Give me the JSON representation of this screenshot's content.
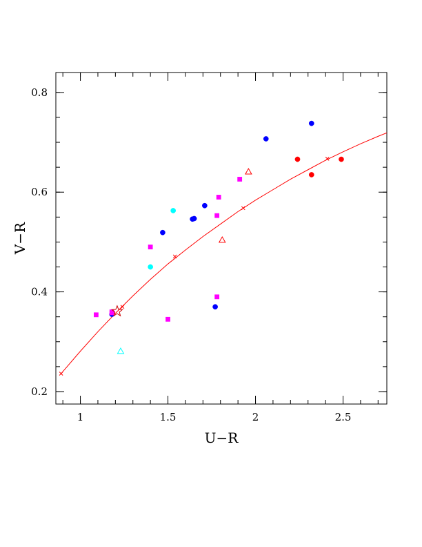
{
  "chart_data": {
    "type": "scatter",
    "xlabel": "U−R",
    "ylabel": "V−R",
    "xlim": [
      0.86,
      2.75
    ],
    "ylim": [
      0.175,
      0.84
    ],
    "x_ticks": [
      {
        "value": 1,
        "label": "1"
      },
      {
        "value": 1.5,
        "label": "1.5"
      },
      {
        "value": 2,
        "label": "2"
      },
      {
        "value": 2.5,
        "label": "2.5"
      }
    ],
    "y_ticks": [
      {
        "value": 0.2,
        "label": "0.2"
      },
      {
        "value": 0.4,
        "label": "0.4"
      },
      {
        "value": 0.6,
        "label": "0.6"
      },
      {
        "value": 0.8,
        "label": "0.8"
      }
    ],
    "x_minor_step": 0.1,
    "y_minor_step": 0.05,
    "grid": false,
    "colors": {
      "blue": "#0000ff",
      "red": "#ff0000",
      "magenta": "#ff00ff",
      "cyan": "#00ffff",
      "curve": "#ff0000",
      "star": "#cc0000"
    },
    "series": [
      {
        "marker": "circle",
        "color": "blue",
        "filled": true,
        "points": [
          [
            1.47,
            0.519
          ],
          [
            1.64,
            0.546
          ],
          [
            1.65,
            0.547
          ],
          [
            1.71,
            0.573
          ],
          [
            1.77,
            0.37
          ],
          [
            2.06,
            0.707
          ],
          [
            2.32,
            0.738
          ],
          [
            1.18,
            0.355
          ]
        ]
      },
      {
        "marker": "circle",
        "color": "red",
        "filled": true,
        "points": [
          [
            2.24,
            0.666
          ],
          [
            2.32,
            0.635
          ],
          [
            2.49,
            0.666
          ]
        ]
      },
      {
        "marker": "circle",
        "color": "cyan",
        "filled": true,
        "points": [
          [
            1.4,
            0.45
          ],
          [
            1.53,
            0.563
          ]
        ]
      },
      {
        "marker": "square",
        "color": "magenta",
        "filled": true,
        "points": [
          [
            1.09,
            0.354
          ],
          [
            1.18,
            0.358
          ],
          [
            1.18,
            0.36
          ],
          [
            1.4,
            0.49
          ],
          [
            1.5,
            0.345
          ],
          [
            1.78,
            0.39
          ],
          [
            1.78,
            0.553
          ],
          [
            1.79,
            0.59
          ],
          [
            1.91,
            0.626
          ]
        ]
      },
      {
        "marker": "triangle",
        "color": "red",
        "filled": false,
        "points": [
          [
            1.81,
            0.504
          ],
          [
            1.96,
            0.641
          ]
        ]
      },
      {
        "marker": "triangle",
        "color": "cyan",
        "filled": false,
        "points": [
          [
            1.23,
            0.281
          ]
        ]
      },
      {
        "marker": "star",
        "color": "star",
        "filled": false,
        "points": [
          [
            1.21,
            0.361
          ]
        ]
      }
    ],
    "curve": {
      "color": "curve",
      "points": [
        [
          0.89,
          0.236
        ],
        [
          1.0,
          0.281
        ],
        [
          1.1,
          0.32
        ],
        [
          1.2,
          0.357
        ],
        [
          1.3,
          0.392
        ],
        [
          1.4,
          0.425
        ],
        [
          1.5,
          0.456
        ],
        [
          1.6,
          0.484
        ],
        [
          1.7,
          0.511
        ],
        [
          1.8,
          0.536
        ],
        [
          1.9,
          0.561
        ],
        [
          2.0,
          0.584
        ],
        [
          2.1,
          0.605
        ],
        [
          2.2,
          0.626
        ],
        [
          2.3,
          0.645
        ],
        [
          2.4,
          0.664
        ],
        [
          2.5,
          0.681
        ],
        [
          2.6,
          0.697
        ],
        [
          2.7,
          0.712
        ],
        [
          2.75,
          0.719
        ]
      ],
      "x_markers": [
        [
          0.89,
          0.236
        ],
        [
          1.24,
          0.37
        ],
        [
          1.54,
          0.471
        ],
        [
          1.93,
          0.568
        ],
        [
          2.41,
          0.667
        ]
      ]
    }
  }
}
